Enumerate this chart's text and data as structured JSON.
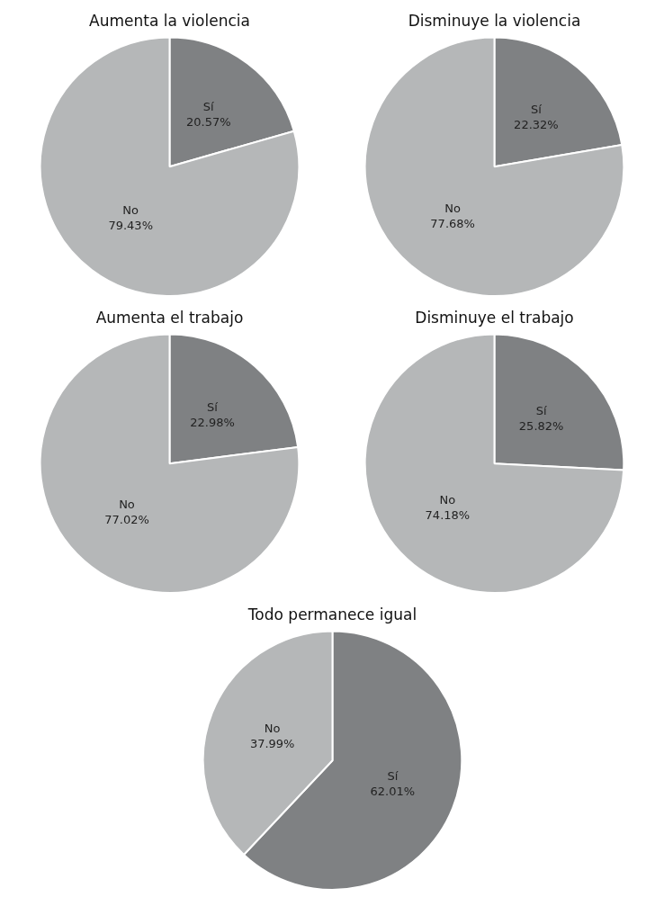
{
  "chart_data": [
    {
      "type": "pie",
      "title": "Aumenta la violencia",
      "categories": [
        "Sí",
        "No"
      ],
      "values": [
        20.57,
        79.43
      ],
      "colors": [
        "#7f8183",
        "#b5b7b8"
      ],
      "value_labels": [
        "20.57%",
        "79.43%"
      ]
    },
    {
      "type": "pie",
      "title": "Disminuye la violencia",
      "categories": [
        "Sí",
        "No"
      ],
      "values": [
        22.32,
        77.68
      ],
      "colors": [
        "#7f8183",
        "#b5b7b8"
      ],
      "value_labels": [
        "22.32%",
        "77.68%"
      ]
    },
    {
      "type": "pie",
      "title": "Aumenta el trabajo",
      "categories": [
        "Sí",
        "No"
      ],
      "values": [
        22.98,
        77.02
      ],
      "colors": [
        "#7f8183",
        "#b5b7b8"
      ],
      "value_labels": [
        "22.98%",
        "77.02%"
      ]
    },
    {
      "type": "pie",
      "title": "Disminuye el trabajo",
      "categories": [
        "Sí",
        "No"
      ],
      "values": [
        25.82,
        74.18
      ],
      "colors": [
        "#7f8183",
        "#b5b7b8"
      ],
      "value_labels": [
        "25.82%",
        "74.18%"
      ]
    },
    {
      "type": "pie",
      "title": "Todo permanece igual",
      "categories": [
        "Sí",
        "No"
      ],
      "values": [
        62.01,
        37.99
      ],
      "colors": [
        "#7f8183",
        "#b5b7b8"
      ],
      "value_labels": [
        "62.01%",
        "37.99%"
      ]
    }
  ]
}
